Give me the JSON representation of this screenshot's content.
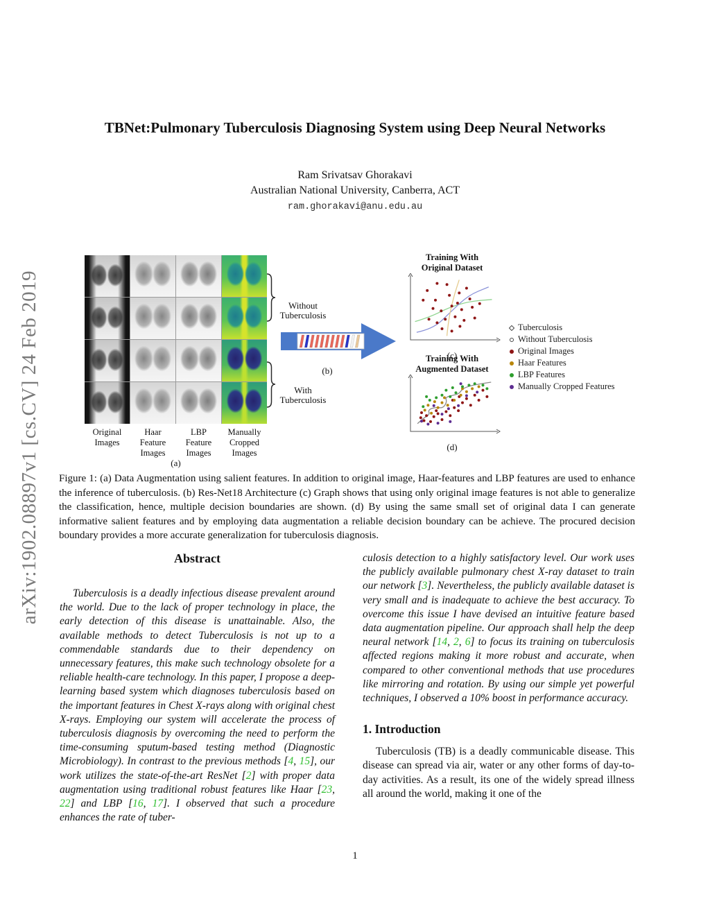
{
  "watermark": "arXiv:1902.08897v1  [cs.CV]  24 Feb 2019",
  "citation_color": "#2fbe2f",
  "header": {
    "title": "TBNet:Pulmonary Tuberculosis Diagnosing System using Deep Neural Networks",
    "author": "Ram Srivatsav Ghorakavi",
    "affiliation": "Australian National University, Canberra, ACT",
    "email": "ram.ghorakavi@anu.edu.au"
  },
  "figure": {
    "column_labels": [
      "Original\nImages",
      "Haar\nFeature\nImages",
      "LBP\nFeature\nImages",
      "Manually\nCropped\nImages"
    ],
    "brace_labels": [
      "Without\nTuberculosis",
      "With\nTuberculosis"
    ],
    "panel_labels": {
      "a": "(a)",
      "b": "(b)",
      "c": "(c)",
      "d": "(d)"
    },
    "arrow_color": "#4a79c9",
    "resnet_slabs": [
      "#e8685c",
      "#2a35c8",
      "#e8685c",
      "#e8685c",
      "#e8685c",
      "#e8685c",
      "#e8685c",
      "#e8685c",
      "#e8685c",
      "#2a35c8",
      "#f2f2f2",
      "#eac99c"
    ],
    "legend": [
      {
        "label": "Tuberculosis",
        "marker": "diamond-outline",
        "color": "#444444"
      },
      {
        "label": "Without Tuberculosis",
        "marker": "circle-outline",
        "color": "#444444"
      },
      {
        "label": "Original Images",
        "marker": "dot",
        "color": "#8e1616"
      },
      {
        "label": "Haar Features",
        "marker": "dot",
        "color": "#b8860b"
      },
      {
        "label": "LBP Features",
        "marker": "dot",
        "color": "#2f9e2f"
      },
      {
        "label": "Manually Cropped Features",
        "marker": "dot",
        "color": "#5e2d91"
      }
    ],
    "caption": "Figure 1: (a) Data Augmentation using salient features. In addition to original image, Haar-features and LBP features are used to enhance the inference of tuberculosis. (b) Res-Net18 Architecture (c) Graph shows that using only original image features is not able to generalize the classification, hence, multiple decision boundaries are shown. (d) By using the same small set of original data I can generate informative salient features and by employing data augmentation a reliable decision boundary can be achieve. The procured decision boundary provides a more accurate generalization for tuberculosis diagnosis."
  },
  "chart_data": [
    {
      "type": "scatter",
      "panel": "(c)",
      "title": "Training With\nOriginal Dataset",
      "xlabel": "",
      "ylabel": "",
      "grid": false,
      "ticks": "none",
      "x_range": [
        0,
        1
      ],
      "y_range": [
        0,
        1
      ],
      "series": [
        {
          "name": "Original Images",
          "color": "#8e1616",
          "points": [
            [
              0.18,
              0.78
            ],
            [
              0.3,
              0.9
            ],
            [
              0.42,
              0.88
            ],
            [
              0.13,
              0.62
            ],
            [
              0.28,
              0.62
            ],
            [
              0.45,
              0.7
            ],
            [
              0.57,
              0.74
            ],
            [
              0.7,
              0.64
            ],
            [
              0.25,
              0.48
            ],
            [
              0.35,
              0.44
            ],
            [
              0.48,
              0.52
            ],
            [
              0.6,
              0.46
            ],
            [
              0.73,
              0.5
            ],
            [
              0.2,
              0.3
            ],
            [
              0.3,
              0.24
            ],
            [
              0.4,
              0.3
            ],
            [
              0.52,
              0.34
            ],
            [
              0.63,
              0.28
            ],
            [
              0.76,
              0.32
            ],
            [
              0.36,
              0.14
            ],
            [
              0.48,
              0.1
            ],
            [
              0.58,
              0.18
            ],
            [
              0.55,
              0.57
            ],
            [
              0.66,
              0.82
            ],
            [
              0.82,
              0.56
            ]
          ]
        }
      ],
      "decision_boundaries": [
        {
          "name": "shallow-boundary",
          "color": "#8fd48f",
          "points": [
            [
              0.03,
              0.26
            ],
            [
              0.22,
              0.34
            ],
            [
              0.45,
              0.5
            ],
            [
              0.7,
              0.6
            ],
            [
              0.97,
              0.63
            ]
          ]
        },
        {
          "name": "sigmoid-boundary",
          "color": "#8a92d8",
          "points": [
            [
              0.05,
              0.08
            ],
            [
              0.25,
              0.14
            ],
            [
              0.45,
              0.4
            ],
            [
              0.68,
              0.7
            ],
            [
              0.93,
              0.84
            ]
          ]
        },
        {
          "name": "steep-boundary",
          "color": "#e5cb8e",
          "points": [
            [
              0.42,
              0.02
            ],
            [
              0.44,
              0.3
            ],
            [
              0.5,
              0.66
            ],
            [
              0.57,
              0.96
            ]
          ]
        }
      ]
    },
    {
      "type": "scatter",
      "panel": "(d)",
      "title": "Training With\nAugmented Dataset",
      "xlabel": "",
      "ylabel": "",
      "grid": false,
      "ticks": "none",
      "x_range": [
        0,
        1
      ],
      "y_range": [
        0,
        1
      ],
      "series": [
        {
          "name": "Original Images",
          "color": "#8e1616",
          "points": [
            [
              0.1,
              0.22
            ],
            [
              0.14,
              0.16
            ],
            [
              0.17,
              0.26
            ],
            [
              0.11,
              0.32
            ],
            [
              0.22,
              0.14
            ],
            [
              0.26,
              0.24
            ],
            [
              0.31,
              0.3
            ],
            [
              0.36,
              0.18
            ],
            [
              0.29,
              0.36
            ],
            [
              0.41,
              0.34
            ],
            [
              0.46,
              0.26
            ],
            [
              0.51,
              0.42
            ],
            [
              0.56,
              0.36
            ],
            [
              0.61,
              0.52
            ],
            [
              0.66,
              0.6
            ],
            [
              0.71,
              0.47
            ],
            [
              0.76,
              0.67
            ],
            [
              0.81,
              0.57
            ],
            [
              0.86,
              0.77
            ],
            [
              0.91,
              0.64
            ],
            [
              0.57,
              0.64
            ],
            [
              0.49,
              0.57
            ]
          ]
        },
        {
          "name": "Haar Features",
          "color": "#b8860b",
          "points": [
            [
              0.15,
              0.37
            ],
            [
              0.23,
              0.31
            ],
            [
              0.19,
              0.47
            ],
            [
              0.31,
              0.42
            ],
            [
              0.36,
              0.52
            ],
            [
              0.43,
              0.47
            ],
            [
              0.39,
              0.62
            ],
            [
              0.51,
              0.57
            ],
            [
              0.59,
              0.67
            ],
            [
              0.66,
              0.74
            ],
            [
              0.73,
              0.8
            ],
            [
              0.61,
              0.8
            ],
            [
              0.27,
              0.54
            ],
            [
              0.81,
              0.84
            ]
          ]
        },
        {
          "name": "LBP Features",
          "color": "#2f9e2f",
          "points": [
            [
              0.13,
              0.44
            ],
            [
              0.21,
              0.57
            ],
            [
              0.29,
              0.62
            ],
            [
              0.36,
              0.67
            ],
            [
              0.46,
              0.64
            ],
            [
              0.53,
              0.72
            ],
            [
              0.61,
              0.84
            ],
            [
              0.69,
              0.87
            ],
            [
              0.76,
              0.9
            ],
            [
              0.86,
              0.87
            ],
            [
              0.41,
              0.77
            ],
            [
              0.49,
              0.82
            ],
            [
              0.91,
              0.8
            ],
            [
              0.17,
              0.64
            ]
          ]
        },
        {
          "name": "Manually Cropped Features",
          "color": "#5e2d91",
          "points": [
            [
              0.11,
              0.15
            ],
            [
              0.19,
              0.09
            ],
            [
              0.31,
              0.11
            ],
            [
              0.26,
              0.46
            ],
            [
              0.46,
              0.14
            ],
            [
              0.56,
              0.46
            ],
            [
              0.66,
              0.66
            ],
            [
              0.79,
              0.73
            ],
            [
              0.59,
              0.9
            ],
            [
              0.36,
              0.29
            ],
            [
              0.44,
              0.4
            ]
          ]
        }
      ],
      "decision_boundaries": [
        {
          "name": "augmented-boundary",
          "color": "#8a8a8a",
          "points": [
            [
              0.06,
              0.1
            ],
            [
              0.14,
              0.22
            ],
            [
              0.21,
              0.28
            ],
            [
              0.19,
              0.38
            ],
            [
              0.29,
              0.43
            ],
            [
              0.37,
              0.41
            ],
            [
              0.42,
              0.53
            ],
            [
              0.4,
              0.63
            ],
            [
              0.5,
              0.67
            ],
            [
              0.57,
              0.7
            ],
            [
              0.61,
              0.8
            ],
            [
              0.71,
              0.86
            ],
            [
              0.84,
              0.9
            ],
            [
              0.96,
              0.93
            ]
          ]
        }
      ]
    }
  ],
  "abstract": {
    "heading": "Abstract",
    "left_segments": [
      {
        "t": "Tuberculosis is a deadly infectious disease prevalent around the world. Due to the lack of proper technology in place, the early detection of this disease is unattainable. Also, the available methods to detect Tuberculosis is not up to a commendable standards due to their dependency on unnecessary features, this make such technology obsolete for a reliable health-care technology. In this paper, I propose a deep-learning based system which diagnoses tuberculosis based on the important features in Chest X-rays along with original chest X-rays. Employing our system will accelerate the process of tuberculosis diagnosis by overcoming the need to perform the time-consuming sputum-based testing method (Diagnostic Microbiology). In contrast to the previous methods ["
      },
      {
        "g": "4"
      },
      {
        "t": ", "
      },
      {
        "g": "15"
      },
      {
        "t": "], our work utilizes the state-of-the-art ResNet ["
      },
      {
        "g": "2"
      },
      {
        "t": "] with proper data augmentation using traditional robust features like Haar ["
      },
      {
        "g": "23"
      },
      {
        "t": ", "
      },
      {
        "g": "22"
      },
      {
        "t": "] and LBP ["
      },
      {
        "g": "16"
      },
      {
        "t": ", "
      },
      {
        "g": "17"
      },
      {
        "t": "]. I observed that such a procedure enhances the rate of tuber-"
      }
    ],
    "right_segments": [
      {
        "t": "culosis detection to a highly satisfactory level.  Our work uses the publicly available pulmonary chest X-ray dataset to train our network ["
      },
      {
        "g": "3"
      },
      {
        "t": "]. Nevertheless, the publicly available dataset is very small and is inadequate to achieve the best accuracy. To overcome this issue I have devised an intuitive feature based data augmentation pipeline. Our approach shall help the deep neural network ["
      },
      {
        "g": "14"
      },
      {
        "t": ", "
      },
      {
        "g": "2"
      },
      {
        "t": ", "
      },
      {
        "g": "6"
      },
      {
        "t": "] to focus its training on tuberculosis affected regions making it more robust and accurate, when compared to other conventional methods that use procedures like mirroring and rotation. By using our simple yet powerful techniques, I observed a 10% boost in performance accuracy."
      }
    ]
  },
  "introduction": {
    "heading": "1. Introduction",
    "paragraph": "Tuberculosis (TB) is a deadly communicable disease. This disease can spread via air, water or any other forms of day-to-day activities.  As a result, its one of the widely spread illness all around the world, making it one of the"
  },
  "page_number": "1"
}
